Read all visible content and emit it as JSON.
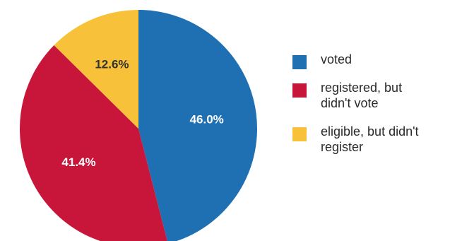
{
  "chart_data": {
    "type": "pie",
    "title": "",
    "categories": [
      "voted",
      "registered, but didn't vote",
      "eligible, but didn't register"
    ],
    "values": [
      46.0,
      41.4,
      12.6
    ],
    "value_labels": [
      "46.0%",
      "41.4%",
      "12.6%"
    ],
    "colors": [
      "#1f6fb3",
      "#c8163a",
      "#f7c23a"
    ],
    "label_colors": [
      "#ffffff",
      "#ffffff",
      "#333333"
    ],
    "start_angle_deg": 0,
    "direction": "clockwise",
    "legend_placement": "right"
  },
  "legend": {
    "items": [
      {
        "lines": [
          "voted"
        ],
        "color": "#1f6fb3"
      },
      {
        "lines": [
          "registered, but",
          "didn't vote"
        ],
        "color": "#c8163a"
      },
      {
        "lines": [
          "eligible, but didn't",
          "register"
        ],
        "color": "#f7c23a"
      }
    ]
  }
}
